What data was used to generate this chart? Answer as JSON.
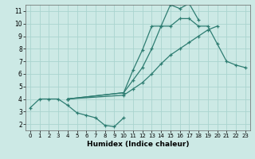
{
  "background_color": "#cce9e5",
  "grid_color": "#aad4cf",
  "line_color": "#2e7d72",
  "xlabel": "Humidex (Indice chaleur)",
  "xlim": [
    -0.5,
    23.5
  ],
  "ylim": [
    1.5,
    11.5
  ],
  "xticks": [
    0,
    1,
    2,
    3,
    4,
    5,
    6,
    7,
    8,
    9,
    10,
    11,
    12,
    13,
    14,
    15,
    16,
    17,
    18,
    19,
    20,
    21,
    22,
    23
  ],
  "yticks": [
    2,
    3,
    4,
    5,
    6,
    7,
    8,
    9,
    10,
    11
  ],
  "series": [
    {
      "x": [
        0,
        1,
        2,
        3,
        4,
        5,
        6,
        7,
        8,
        9,
        10
      ],
      "y": [
        3.3,
        4.0,
        4.0,
        4.0,
        3.5,
        2.9,
        2.7,
        2.5,
        1.9,
        1.8,
        2.5
      ]
    },
    {
      "x": [
        4,
        10,
        11,
        12,
        13,
        14,
        15,
        16,
        17,
        18,
        19,
        20,
        21,
        22,
        23
      ],
      "y": [
        4.0,
        4.5,
        6.3,
        7.9,
        9.8,
        9.8,
        11.5,
        11.2,
        11.6,
        10.3,
        null,
        null,
        null,
        null,
        null
      ]
    },
    {
      "x": [
        4,
        10,
        11,
        12,
        13,
        14,
        15,
        16,
        17,
        18,
        19,
        20,
        21,
        22,
        23
      ],
      "y": [
        4.0,
        4.4,
        5.4,
        6.5,
        8.0,
        9.8,
        9.8,
        null,
        null,
        null,
        null,
        null,
        null,
        null,
        null
      ]
    },
    {
      "x": [
        4,
        10,
        11,
        12,
        13,
        14,
        15,
        16,
        17,
        18,
        19,
        20,
        21,
        22,
        23
      ],
      "y": [
        4.0,
        4.3,
        4.8,
        5.3,
        6.0,
        6.8,
        7.5,
        8.0,
        8.5,
        9.0,
        9.5,
        9.8,
        null,
        null,
        null
      ]
    }
  ],
  "series2": [
    {
      "x": [
        0,
        1,
        2,
        3,
        4,
        5,
        6,
        7,
        8,
        9,
        10
      ],
      "y": [
        3.3,
        4.0,
        4.0,
        4.0,
        3.5,
        2.9,
        2.7,
        2.5,
        1.9,
        1.8,
        2.5
      ]
    },
    {
      "x": [
        4,
        10,
        11,
        12,
        13,
        14,
        15,
        16,
        17,
        18
      ],
      "y": [
        4.0,
        4.5,
        6.3,
        7.9,
        9.8,
        9.8,
        11.5,
        11.2,
        11.6,
        10.3
      ]
    },
    {
      "x": [
        4,
        10,
        11,
        12,
        13,
        14,
        15,
        16,
        17,
        18,
        19,
        20,
        21,
        22,
        23
      ],
      "y": [
        4.0,
        4.5,
        5.5,
        6.5,
        8.0,
        9.8,
        9.8,
        10.4,
        10.4,
        9.8,
        9.8,
        8.4,
        7.0,
        6.7,
        6.5
      ]
    },
    {
      "x": [
        4,
        10,
        11,
        12,
        13,
        14,
        15,
        16,
        17,
        18,
        19,
        20
      ],
      "y": [
        4.0,
        4.3,
        4.8,
        5.3,
        6.0,
        6.8,
        7.5,
        8.0,
        8.5,
        9.0,
        9.5,
        9.8
      ]
    }
  ]
}
